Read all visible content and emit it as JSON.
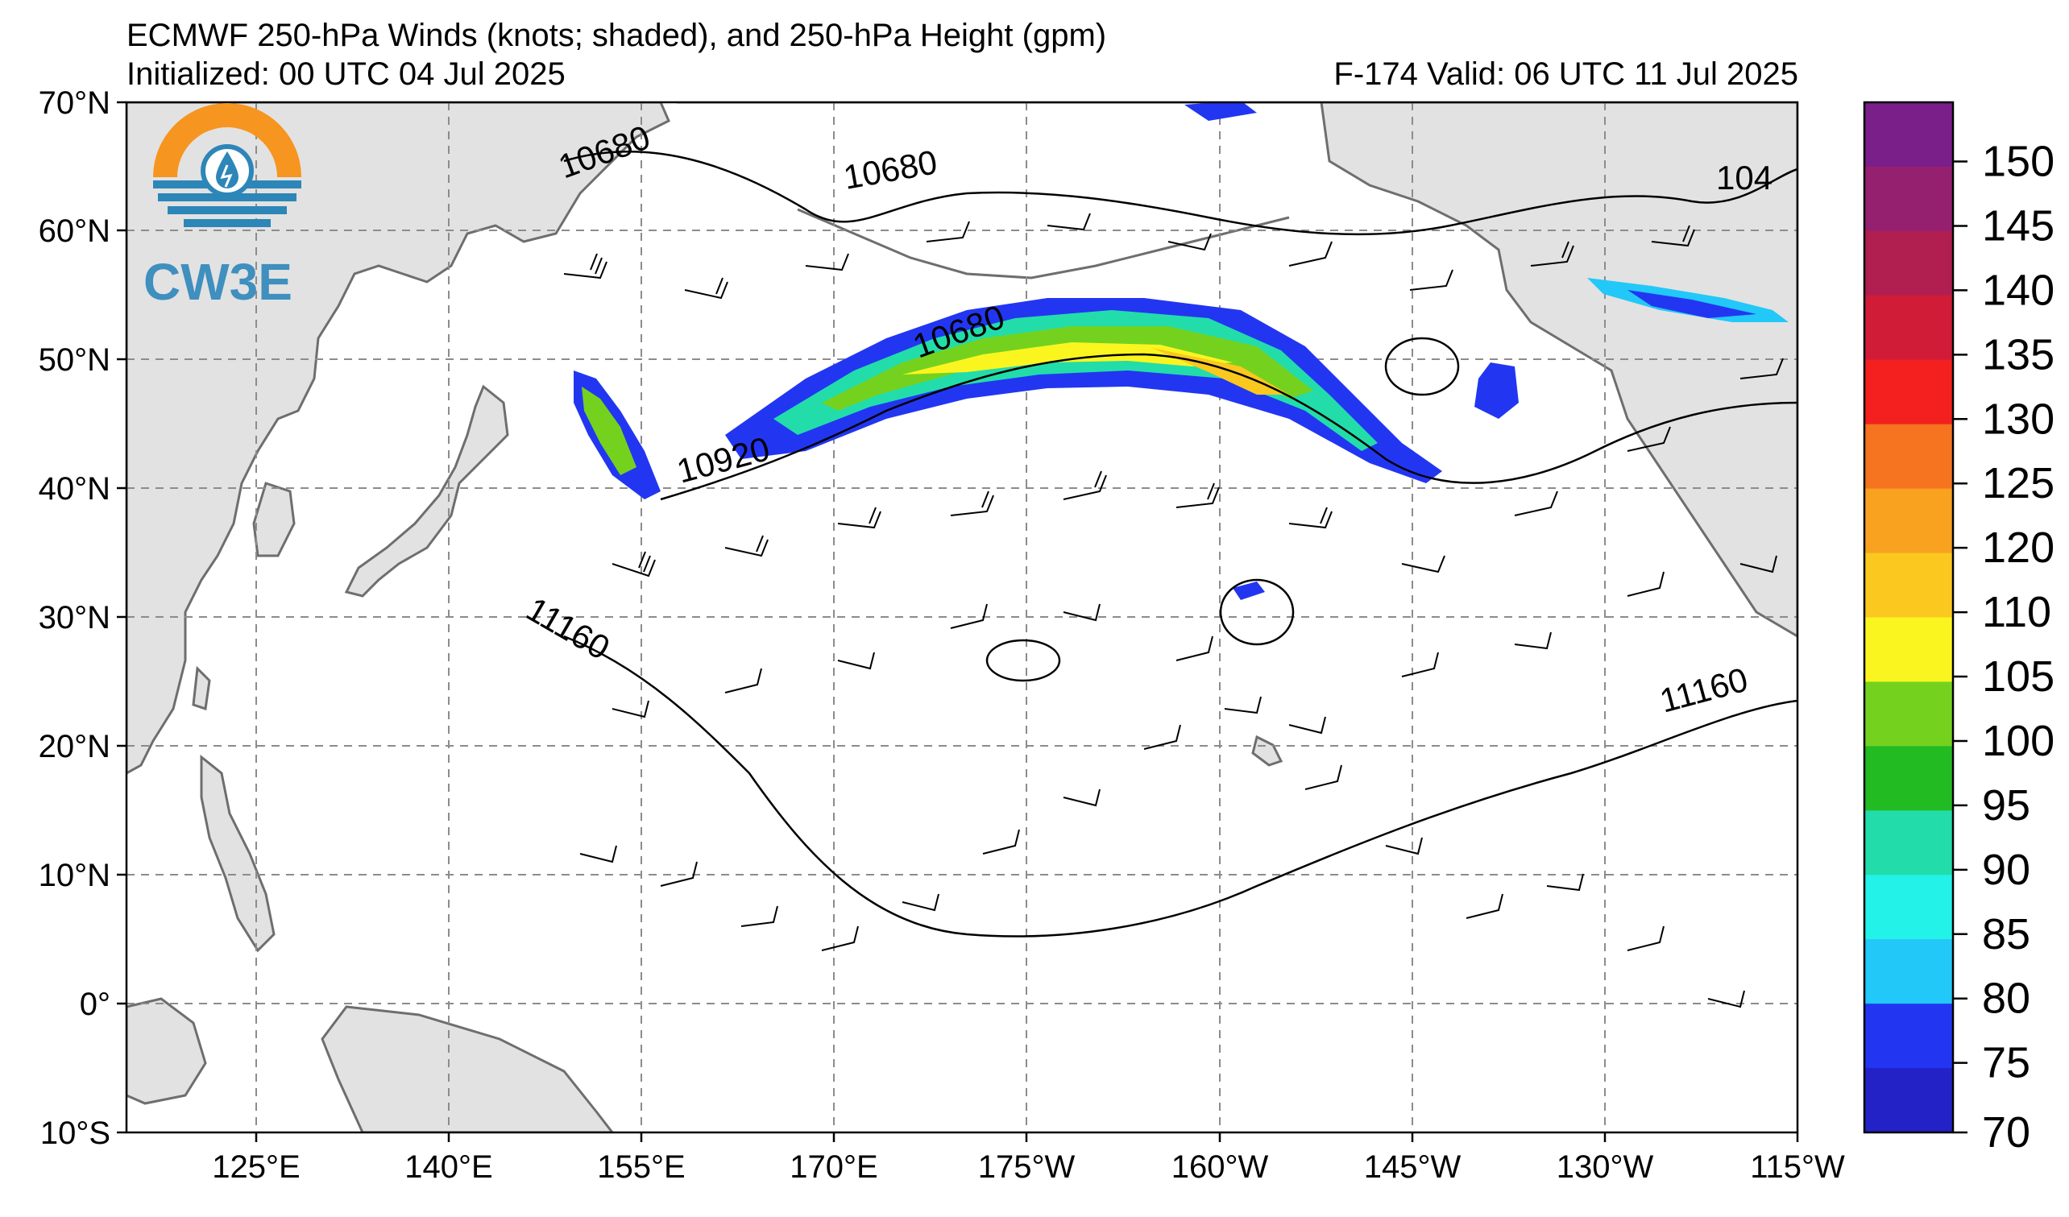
{
  "header": {
    "title": "ECMWF 250-hPa Winds (knots; shaded), and 250-hPa Height (gpm)",
    "initialized": "Initialized: 00 UTC 04 Jul 2025",
    "valid": "F-174  Valid: 06 UTC 11 Jul 2025"
  },
  "logo": {
    "text": "CW3E"
  },
  "map": {
    "lat_ticks": [
      "70°N",
      "60°N",
      "50°N",
      "40°N",
      "30°N",
      "20°N",
      "10°N",
      "0°",
      "10°S"
    ],
    "lon_ticks": [
      "125°E",
      "140°E",
      "155°E",
      "170°E",
      "175°W",
      "160°W",
      "145°W",
      "130°W",
      "115°W"
    ],
    "land_color": "#e2e2e2",
    "coast_color": "#6e6e6e",
    "grid_style": "dashed gray",
    "contour_labels": [
      "10680",
      "10680",
      "10680",
      "10920",
      "11160",
      "11160",
      "104"
    ]
  },
  "colorbar": {
    "labels": [
      "150",
      "145",
      "140",
      "135",
      "130",
      "125",
      "120",
      "110",
      "105",
      "100",
      "95",
      "90",
      "85",
      "80",
      "75",
      "70"
    ],
    "colors": [
      "#7a1e8a",
      "#962070",
      "#b11e50",
      "#d11c38",
      "#f3201f",
      "#f6731f",
      "#f8a21f",
      "#fbc81f",
      "#fbf51f",
      "#74d21f",
      "#22bb22",
      "#22ddaa",
      "#22f2e8",
      "#22c8f8",
      "#2236f2",
      "#2222c6"
    ]
  }
}
